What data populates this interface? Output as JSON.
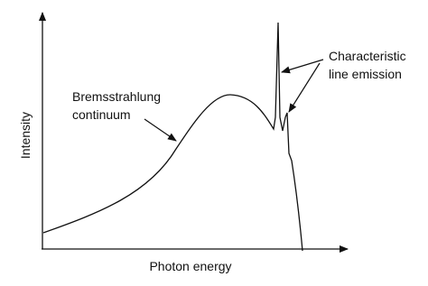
{
  "axes": {
    "y_label": "Intensity",
    "x_label": "Photon energy"
  },
  "annotations": [
    {
      "lines": [
        "Bremsstrahlung",
        "continuum"
      ]
    },
    {
      "lines": [
        "Characteristic",
        "line emission"
      ]
    }
  ]
}
